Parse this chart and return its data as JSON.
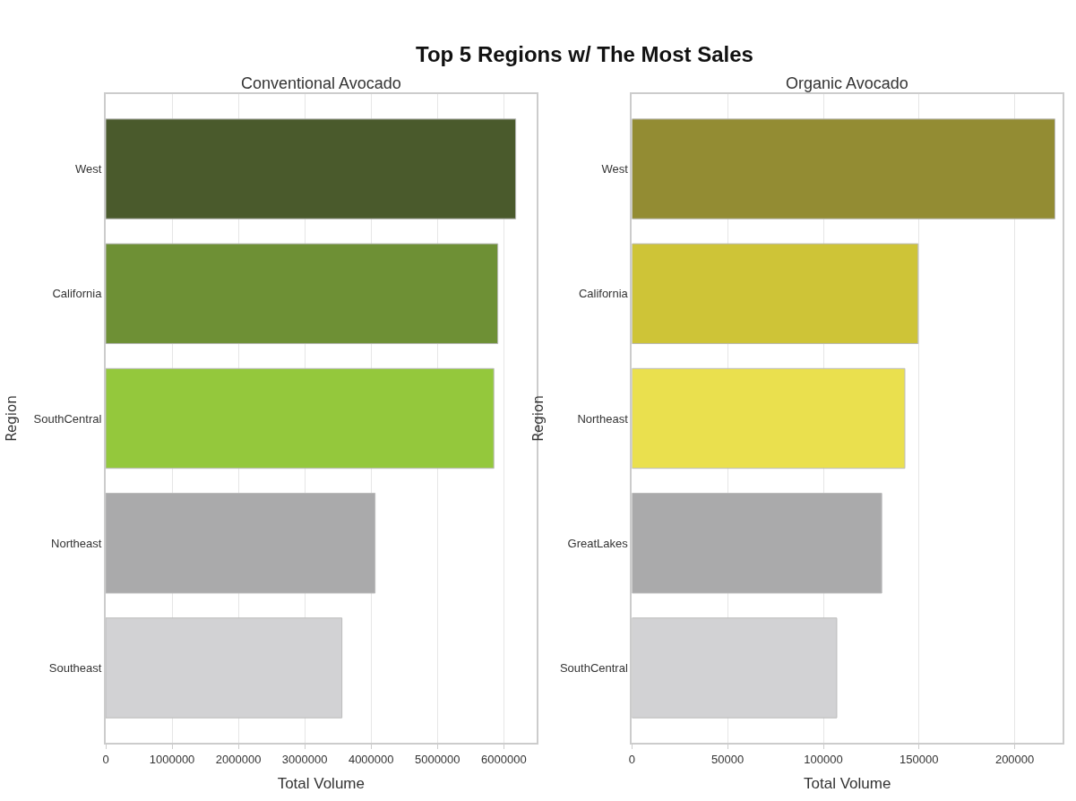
{
  "chart_data": [
    {
      "type": "bar",
      "orientation": "horizontal",
      "title": "Conventional Avocado",
      "xlabel": "Total Volume",
      "ylabel": "Region",
      "annotations": [
        "Top 5 Regions w/ The Most Sales"
      ],
      "categories": [
        "West",
        "California",
        "SouthCentral",
        "Northeast",
        "Southeast"
      ],
      "values": [
        6180000,
        5910000,
        5850000,
        4060000,
        3560000
      ],
      "colors": [
        "#4a5a2c",
        "#6e9035",
        "#94c83c",
        "#aaaaab",
        "#d2d2d4"
      ],
      "xlim": [
        0,
        6490000
      ],
      "xticks": [
        0,
        1000000,
        2000000,
        3000000,
        4000000,
        5000000,
        6000000
      ],
      "grid": "x",
      "legend": false
    },
    {
      "type": "bar",
      "orientation": "horizontal",
      "title": "Organic Avocado",
      "xlabel": "Total Volume",
      "ylabel": "Region",
      "categories": [
        "West",
        "California",
        "Northeast",
        "GreatLakes",
        "SouthCentral"
      ],
      "values": [
        221000,
        149500,
        142600,
        130500,
        107000
      ],
      "colors": [
        "#938c33",
        "#cec437",
        "#eae04e",
        "#aaaaab",
        "#d2d2d4"
      ],
      "xlim": [
        0,
        225000
      ],
      "xticks": [
        0,
        50000,
        100000,
        150000,
        200000
      ],
      "grid": "x",
      "legend": false
    }
  ]
}
